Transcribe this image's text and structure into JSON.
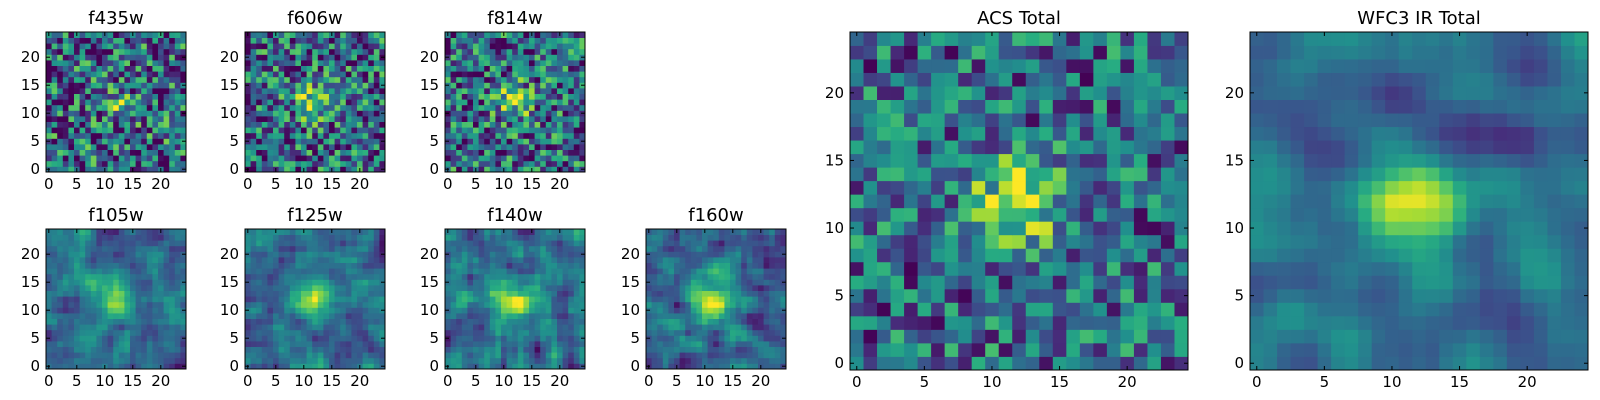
{
  "chart_data": [
    {
      "type": "heatmap",
      "title": "f435w",
      "xticks": [
        "0",
        "5",
        "10",
        "15",
        "20"
      ],
      "yticks": [
        "0",
        "5",
        "10",
        "15",
        "20"
      ],
      "grid": false,
      "legend": "none",
      "colormap": "viridis"
    },
    {
      "type": "heatmap",
      "title": "f606w",
      "xticks": [
        "0",
        "5",
        "10",
        "15",
        "20"
      ],
      "yticks": [
        "0",
        "5",
        "10",
        "15",
        "20"
      ],
      "grid": false,
      "legend": "none",
      "colormap": "viridis"
    },
    {
      "type": "heatmap",
      "title": "f814w",
      "xticks": [
        "0",
        "5",
        "10",
        "15",
        "20"
      ],
      "yticks": [
        "0",
        "5",
        "10",
        "15",
        "20"
      ],
      "grid": false,
      "legend": "none",
      "colormap": "viridis"
    },
    {
      "type": "heatmap",
      "title": "f105w",
      "xticks": [
        "0",
        "5",
        "10",
        "15",
        "20"
      ],
      "yticks": [
        "0",
        "5",
        "10",
        "15",
        "20"
      ],
      "grid": false,
      "legend": "none",
      "colormap": "viridis"
    },
    {
      "type": "heatmap",
      "title": "f125w",
      "xticks": [
        "0",
        "5",
        "10",
        "15",
        "20"
      ],
      "yticks": [
        "0",
        "5",
        "10",
        "15",
        "20"
      ],
      "grid": false,
      "legend": "none",
      "colormap": "viridis"
    },
    {
      "type": "heatmap",
      "title": "f140w",
      "xticks": [
        "0",
        "5",
        "10",
        "15",
        "20"
      ],
      "yticks": [
        "0",
        "5",
        "10",
        "15",
        "20"
      ],
      "grid": false,
      "legend": "none",
      "colormap": "viridis"
    },
    {
      "type": "heatmap",
      "title": "f160w",
      "xticks": [
        "0",
        "5",
        "10",
        "15",
        "20"
      ],
      "yticks": [
        "0",
        "5",
        "10",
        "15",
        "20"
      ],
      "grid": false,
      "legend": "none",
      "colormap": "viridis"
    },
    {
      "type": "heatmap",
      "title": "ACS Total",
      "xticks": [
        "0",
        "5",
        "10",
        "15",
        "20"
      ],
      "yticks": [
        "0",
        "5",
        "10",
        "15",
        "20"
      ],
      "grid": false,
      "legend": "none",
      "colormap": "viridis"
    },
    {
      "type": "heatmap",
      "title": "WFC3 IR Total",
      "xticks": [
        "0",
        "5",
        "10",
        "15",
        "20"
      ],
      "yticks": [
        "0",
        "5",
        "10",
        "15",
        "20"
      ],
      "grid": false,
      "legend": "none",
      "colormap": "viridis"
    }
  ]
}
